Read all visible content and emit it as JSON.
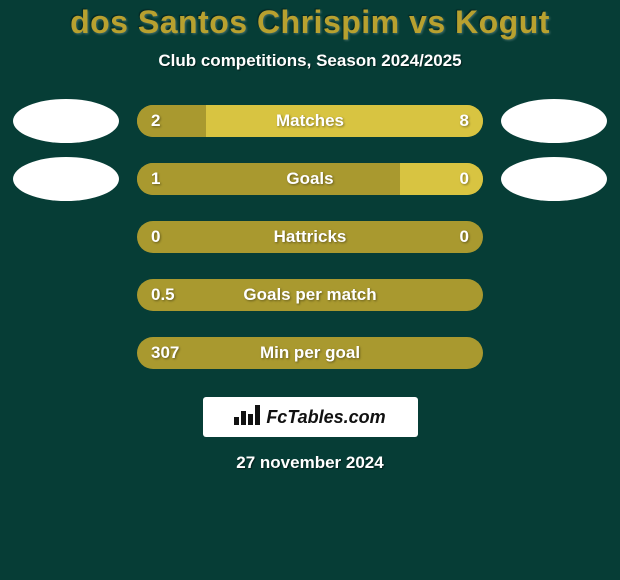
{
  "colors": {
    "page_bg": "#063d36",
    "title": "#b8a12f",
    "subtitle": "#ffffff",
    "bar_bg": "#a9992f",
    "seg_left": "#a9992f",
    "seg_right": "#d8c441",
    "bar_text": "#ffffff",
    "avatar_bg": "#ffffff",
    "logo_bg": "#ffffff",
    "logo_fg": "#111111",
    "footer_date": "#ffffff"
  },
  "typography": {
    "title_fontsize": 32,
    "subtitle_fontsize": 17,
    "bar_fontsize": 17,
    "footer_fontsize": 17
  },
  "header": {
    "title": "dos Santos Chrispim vs Kogut",
    "subtitle": "Club competitions, Season 2024/2025"
  },
  "rows": [
    {
      "label": "Matches",
      "left": "2",
      "right": "8",
      "left_pct": 20,
      "show_avatars": true
    },
    {
      "label": "Goals",
      "left": "1",
      "right": "0",
      "left_pct": 76,
      "show_avatars": true
    },
    {
      "label": "Hattricks",
      "left": "0",
      "right": "0",
      "left_pct": 100,
      "show_avatars": false
    },
    {
      "label": "Goals per match",
      "left": "0.5",
      "right": "",
      "left_pct": 100,
      "show_avatars": false
    },
    {
      "label": "Min per goal",
      "left": "307",
      "right": "",
      "left_pct": 100,
      "show_avatars": false
    }
  ],
  "footer": {
    "logo_text": "FcTables.com",
    "date": "27 november 2024"
  }
}
